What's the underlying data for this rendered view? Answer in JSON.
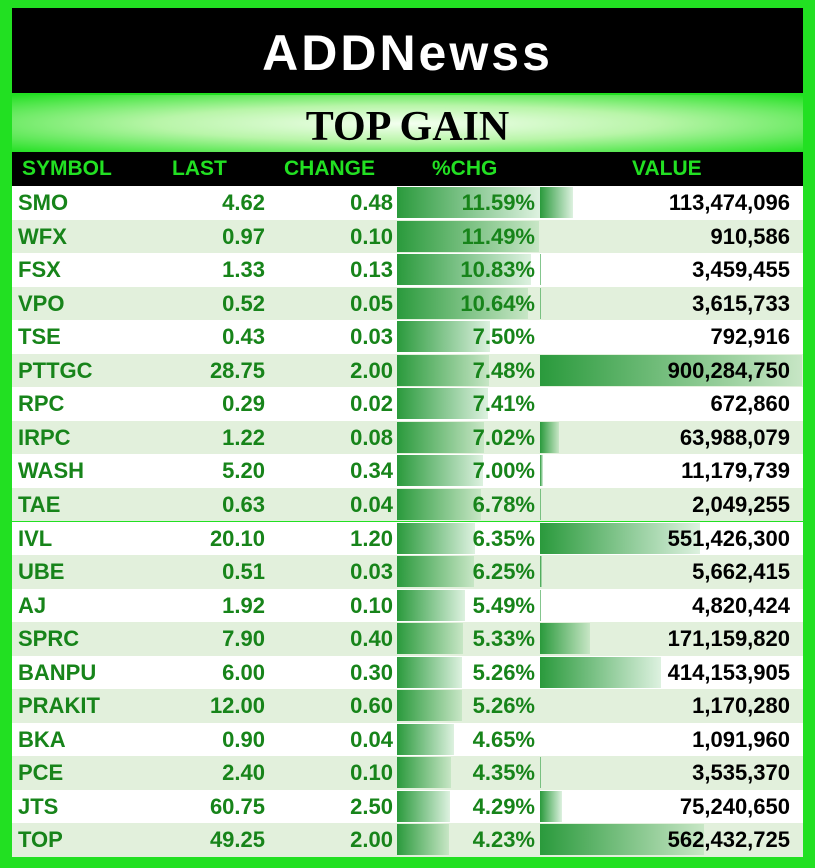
{
  "header": {
    "logo": "ADDNewss",
    "title": "TOP GAIN"
  },
  "table": {
    "columns": [
      "SYMBOL",
      "LAST",
      "CHANGE",
      "%CHG",
      "VALUE"
    ],
    "rows": [
      [
        "SMO",
        "4.62",
        "0.48",
        "11.59%",
        "113,474,096"
      ],
      [
        "WFX",
        "0.97",
        "0.10",
        "11.49%",
        "910,586"
      ],
      [
        "FSX",
        "1.33",
        "0.13",
        "10.83%",
        "3,459,455"
      ],
      [
        "VPO",
        "0.52",
        "0.05",
        "10.64%",
        "3,615,733"
      ],
      [
        "TSE",
        "0.43",
        "0.03",
        "7.50%",
        "792,916"
      ],
      [
        "PTTGC",
        "28.75",
        "2.00",
        "7.48%",
        "900,284,750"
      ],
      [
        "RPC",
        "0.29",
        "0.02",
        "7.41%",
        "672,860"
      ],
      [
        "IRPC",
        "1.22",
        "0.08",
        "7.02%",
        "63,988,079"
      ],
      [
        "WASH",
        "5.20",
        "0.34",
        "7.00%",
        "11,179,739"
      ],
      [
        "TAE",
        "0.63",
        "0.04",
        "6.78%",
        "2,049,255"
      ],
      [
        "IVL",
        "20.10",
        "1.20",
        "6.35%",
        "551,426,300"
      ],
      [
        "UBE",
        "0.51",
        "0.03",
        "6.25%",
        "5,662,415"
      ],
      [
        "AJ",
        "1.92",
        "0.10",
        "5.49%",
        "4,820,424"
      ],
      [
        "SPRC",
        "7.90",
        "0.40",
        "5.33%",
        "171,159,820"
      ],
      [
        "BANPU",
        "6.00",
        "0.30",
        "5.26%",
        "414,153,905"
      ],
      [
        "PRAKIT",
        "12.00",
        "0.60",
        "5.26%",
        "1,170,280"
      ],
      [
        "BKA",
        "0.90",
        "0.04",
        "4.65%",
        "1,091,960"
      ],
      [
        "PCE",
        "2.40",
        "0.10",
        "4.35%",
        "3,535,370"
      ],
      [
        "JTS",
        "60.75",
        "2.50",
        "4.29%",
        "75,240,650"
      ],
      [
        "TOP",
        "49.25",
        "2.00",
        "4.23%",
        "562,432,725"
      ]
    ]
  }
}
